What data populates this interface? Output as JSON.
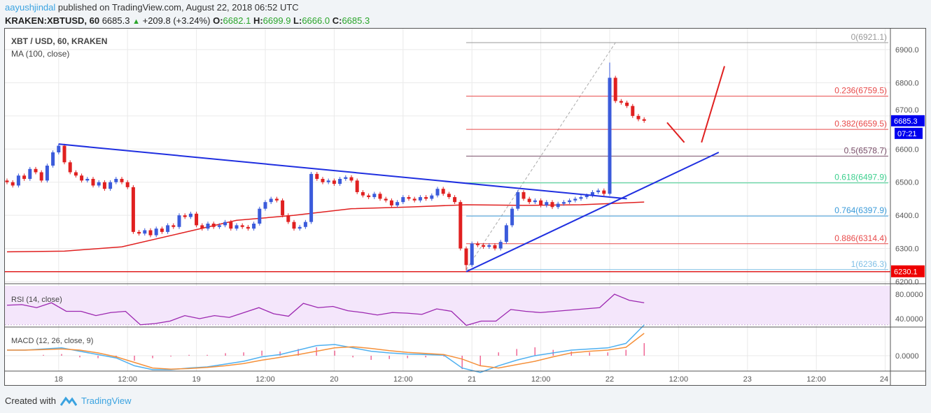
{
  "header": {
    "user": "aayushjindal",
    "published": "published on TradingView.com, August 22, 2018 06:52 UTC",
    "symbol": "KRAKEN:XBTUSD, 60",
    "last": "6685.3",
    "change": "+209.8 (+3.24%)",
    "o_label": "O:",
    "o": "6682.1",
    "h_label": "H:",
    "h": "6699.9",
    "l_label": "L:",
    "l": "6666.0",
    "c_label": "C:",
    "c": "6685.3"
  },
  "legend": {
    "title": "XBT / USD, 60, KRAKEN",
    "ma": "MA (100, close)",
    "rsi": "RSI (14, close)",
    "macd": "MACD (12, 26, close, 9)"
  },
  "footer": {
    "created": "Created with",
    "brand": "TradingView"
  },
  "colors": {
    "up": "#3b5bdb",
    "down": "#e02020",
    "ma": "#e02020",
    "trend": "#1f2fe0",
    "rsi": "#9c27b0",
    "macd": "#4fb0f0",
    "signal": "#f5903a",
    "hist": "#e91e63"
  },
  "chart_data": {
    "type": "candlestick",
    "title": "XBT / USD, 60, KRAKEN",
    "ylim": [
      6180,
      6950
    ],
    "price_ticks": [
      "6900.0",
      "6800.0",
      "6700.0",
      "6600.0",
      "6500.0",
      "6400.0",
      "6300.0",
      "6200.0"
    ],
    "time_ticks": [
      {
        "idx": 9,
        "label": "18"
      },
      {
        "idx": 21,
        "label": "12:00"
      },
      {
        "idx": 33,
        "label": "19"
      },
      {
        "idx": 45,
        "label": "12:00"
      },
      {
        "idx": 57,
        "label": "20"
      },
      {
        "idx": 69,
        "label": "12:00"
      },
      {
        "idx": 81,
        "label": "21"
      },
      {
        "idx": 93,
        "label": "12:00"
      },
      {
        "idx": 105,
        "label": "22"
      },
      {
        "idx": 117,
        "label": "12:00"
      },
      {
        "idx": 129,
        "label": "23"
      },
      {
        "idx": 141,
        "label": "12:00"
      },
      {
        "idx": 153,
        "label": "24"
      }
    ],
    "closes": [
      6500,
      6490,
      6520,
      6510,
      6540,
      6530,
      6505,
      6550,
      6590,
      6610,
      6560,
      6530,
      6520,
      6505,
      6510,
      6490,
      6500,
      6480,
      6500,
      6510,
      6500,
      6485,
      6350,
      6345,
      6355,
      6340,
      6360,
      6350,
      6370,
      6365,
      6400,
      6395,
      6405,
      6370,
      6360,
      6375,
      6365,
      6370,
      6380,
      6360,
      6370,
      6365,
      6360,
      6375,
      6420,
      6440,
      6450,
      6445,
      6400,
      6380,
      6360,
      6365,
      6380,
      6525,
      6510,
      6500,
      6505,
      6495,
      6510,
      6515,
      6505,
      6470,
      6460,
      6455,
      6465,
      6450,
      6445,
      6430,
      6440,
      6455,
      6450,
      6445,
      6455,
      6450,
      6460,
      6480,
      6465,
      6455,
      6440,
      6300,
      6250,
      6315,
      6310,
      6305,
      6310,
      6300,
      6320,
      6370,
      6420,
      6470,
      6450,
      6440,
      6445,
      6430,
      6440,
      6425,
      6435,
      6440,
      6445,
      6450,
      6455,
      6460,
      6470,
      6475,
      6465,
      6815,
      6745,
      6740,
      6730,
      6700,
      6690,
      6685.3
    ],
    "ma100": [
      [
        0,
        6290
      ],
      [
        10,
        6292
      ],
      [
        20,
        6305
      ],
      [
        30,
        6345
      ],
      [
        40,
        6385
      ],
      [
        50,
        6400
      ],
      [
        60,
        6420
      ],
      [
        70,
        6425
      ],
      [
        80,
        6432
      ],
      [
        90,
        6430
      ],
      [
        100,
        6432
      ],
      [
        111,
        6440
      ]
    ],
    "trendlines": [
      {
        "name": "resistance",
        "from": [
          9,
          6615
        ],
        "to": [
          108,
          6450
        ]
      },
      {
        "name": "support",
        "from": [
          80,
          6230
        ],
        "to": [
          124,
          6590
        ]
      }
    ],
    "arrows": [
      {
        "from": [
          115,
          6680
        ],
        "to": [
          118,
          6620
        ]
      },
      {
        "from": [
          121,
          6620
        ],
        "to": [
          125,
          6850
        ]
      }
    ],
    "fib_anchor": {
      "from": [
        80,
        6236.3
      ],
      "to": [
        106,
        6921.1
      ]
    },
    "fib_levels": [
      {
        "label": "0(6921.1)",
        "price": 6921.1,
        "color": "#999999"
      },
      {
        "label": "0.236(6759.5)",
        "price": 6759.5,
        "color": "#e84a4a"
      },
      {
        "label": "0.382(6659.5)",
        "price": 6659.5,
        "color": "#e84a4a"
      },
      {
        "label": "0.5(6578.7)",
        "price": 6578.7,
        "color": "#7a4f6a"
      },
      {
        "label": "0.618(6497.9)",
        "price": 6497.9,
        "color": "#3ccf8e"
      },
      {
        "label": "0.764(6397.9)",
        "price": 6397.9,
        "color": "#3a9ad9"
      },
      {
        "label": "0.886(6314.4)",
        "price": 6314.4,
        "color": "#e84a4a"
      },
      {
        "label": "1(6236.3)",
        "price": 6236.3,
        "color": "#7fbfe6"
      }
    ],
    "support_line": {
      "price": 6230.1,
      "label": "6230.1"
    },
    "last_price": {
      "label": "6685.3",
      "countdown": "07:21",
      "price": 6685.3
    },
    "rsi": {
      "ticks": [
        "80.0000",
        "40.0000"
      ],
      "bands": [
        70,
        30
      ],
      "values": [
        62,
        63,
        58,
        66,
        52,
        52,
        45,
        50,
        52,
        30,
        32,
        36,
        45,
        40,
        45,
        42,
        50,
        58,
        48,
        44,
        65,
        58,
        60,
        53,
        50,
        46,
        50,
        49,
        47,
        56,
        52,
        29,
        36,
        36,
        55,
        52,
        50,
        52,
        54,
        56,
        58,
        80,
        70,
        66
      ]
    },
    "macd": {
      "tick": "0.0000",
      "macd": [
        10,
        10,
        12,
        14,
        8,
        2,
        -4,
        -18,
        -25,
        -25,
        -22,
        -20,
        -15,
        -10,
        -2,
        2,
        10,
        18,
        20,
        14,
        8,
        5,
        3,
        2,
        1,
        -22,
        -30,
        -18,
        -8,
        0,
        5,
        10,
        12,
        14,
        22,
        55
      ],
      "signal": [
        10,
        10,
        11,
        12,
        10,
        5,
        -2,
        -12,
        -22,
        -24,
        -23,
        -21,
        -18,
        -14,
        -8,
        -3,
        2,
        8,
        14,
        16,
        13,
        9,
        6,
        4,
        2,
        -6,
        -18,
        -22,
        -16,
        -10,
        -2,
        5,
        8,
        10,
        15,
        40
      ]
    }
  }
}
